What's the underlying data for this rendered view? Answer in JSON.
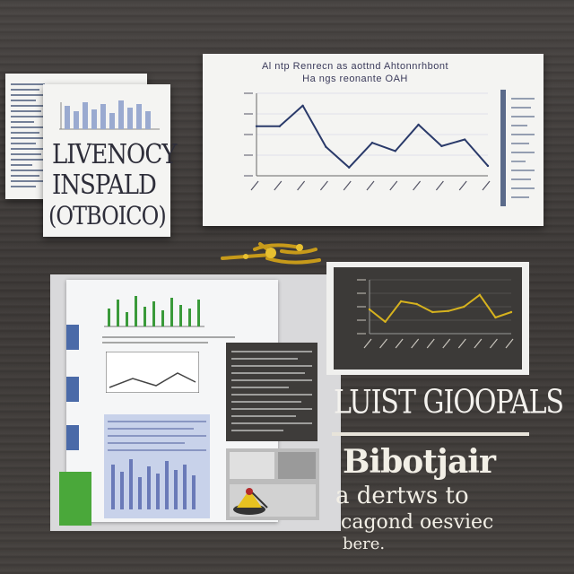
{
  "card": {
    "lines": [
      "LIVENOCY",
      "INSPALD",
      "(OTBOICO)"
    ]
  },
  "main_chart": {
    "title_line1": "Al ntp Renrecn as aottnd Ahtonnrhbont",
    "title_line2": "Ha ngs reonante OAH"
  },
  "headline": "LUIST GIOOPALS",
  "tagline": {
    "line1": "Bibotjair",
    "line2": "a dertws to",
    "line3": "cagond oesviec",
    "line4": "bere."
  },
  "chart_data": [
    {
      "type": "line",
      "title": "",
      "x": [
        1,
        2,
        3,
        4,
        5,
        6,
        7,
        8,
        9,
        10,
        11
      ],
      "series": [
        {
          "values": [
            60,
            60,
            85,
            35,
            10,
            40,
            30,
            62,
            36,
            44,
            12
          ]
        }
      ],
      "ylim": [
        0,
        100
      ],
      "color": "#2a3a6a"
    },
    {
      "type": "line",
      "title": "",
      "x": [
        1,
        2,
        3,
        4,
        5,
        6,
        7,
        8,
        9,
        10
      ],
      "series": [
        {
          "values": [
            45,
            22,
            60,
            55,
            40,
            42,
            50,
            72,
            30,
            40
          ]
        }
      ],
      "ylim": [
        0,
        100
      ],
      "color": "#d6b21e"
    }
  ]
}
